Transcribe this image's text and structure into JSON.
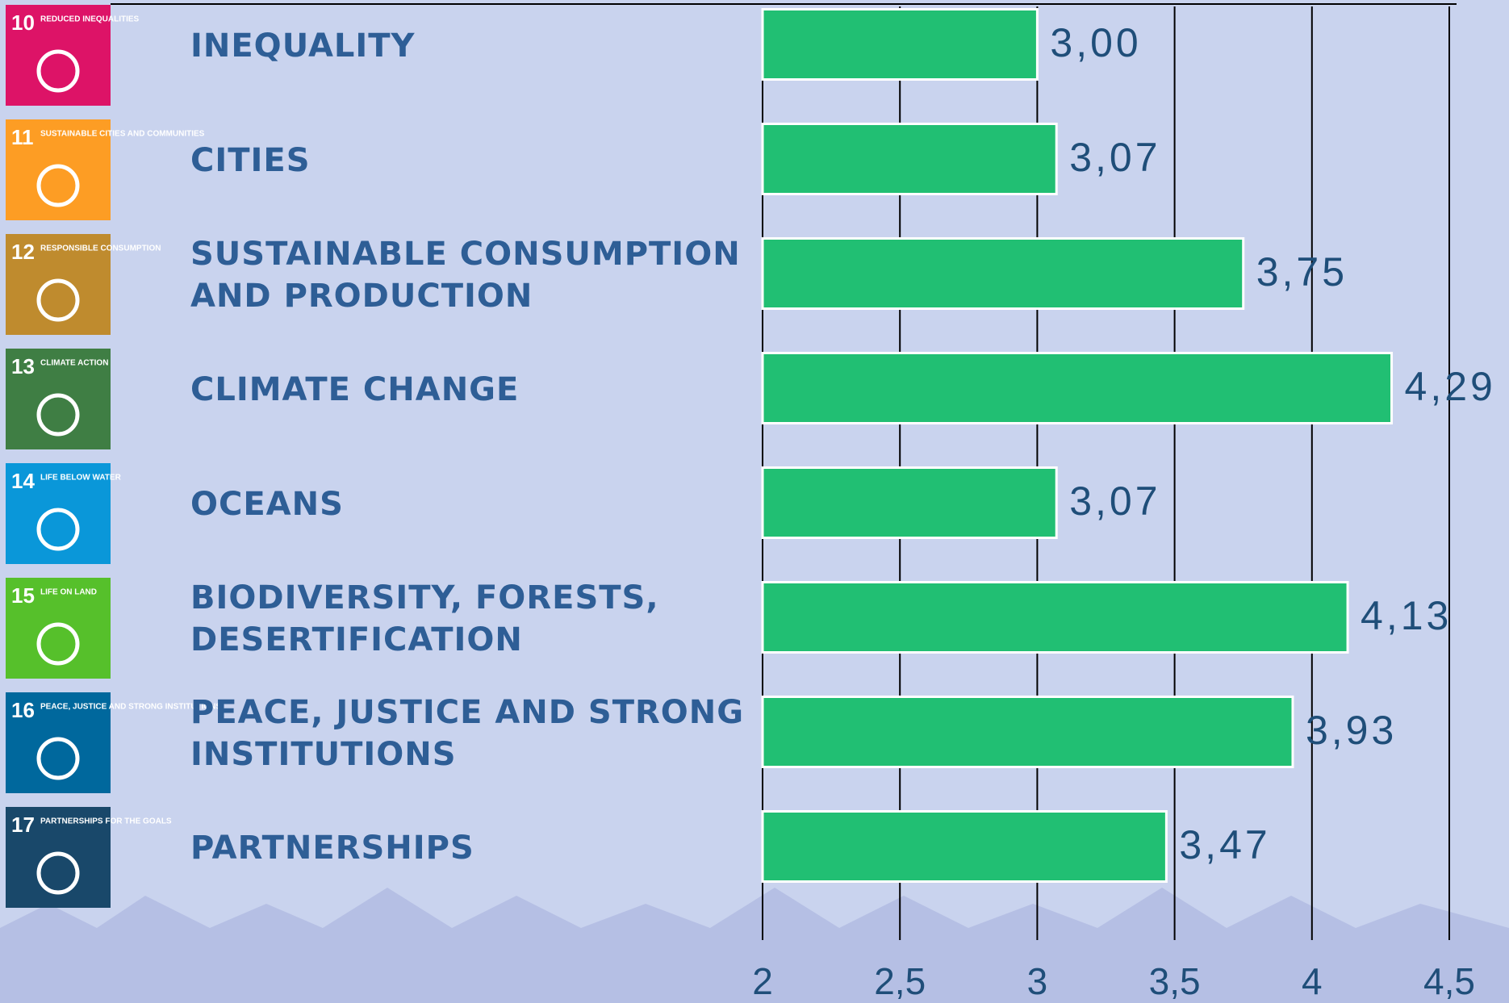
{
  "chart_data": {
    "type": "bar",
    "orientation": "horizontal",
    "categories": [
      [
        "INEQUALITY"
      ],
      [
        "CITIES"
      ],
      [
        "SUSTAINABLE CONSUMPTION",
        "AND PRODUCTION"
      ],
      [
        "CLIMATE CHANGE"
      ],
      [
        "OCEANS"
      ],
      [
        "BIODIVERSITY, FORESTS,",
        "DESERTIFICATION"
      ],
      [
        "PEACE, JUSTICE AND STRONG",
        "INSTITUTIONS"
      ],
      [
        "PARTNERSHIPS"
      ]
    ],
    "values": [
      3.0,
      3.07,
      3.75,
      4.29,
      3.07,
      4.13,
      3.93,
      3.47
    ],
    "value_labels": [
      "3,00",
      "3,07",
      "3,75",
      "4,29",
      "3,07",
      "4,13",
      "3,93",
      "3,47"
    ],
    "color": "#21bf73",
    "xlim": [
      2,
      4.5
    ],
    "xticks": [
      2,
      {
        "value": 2.5,
        "label": "2,5"
      },
      3,
      {
        "value": 3.5,
        "label": "3,5"
      },
      4,
      {
        "value": 4.5,
        "label": "4,5"
      }
    ],
    "grid": true,
    "icons": [
      {
        "number": "10",
        "label": "REDUCED INEQUALITIES",
        "color": "#dd1367"
      },
      {
        "number": "11",
        "label": "SUSTAINABLE CITIES AND COMMUNITIES",
        "color": "#fd9d24"
      },
      {
        "number": "12",
        "label": "RESPONSIBLE CONSUMPTION",
        "color": "#bf8b2e"
      },
      {
        "number": "13",
        "label": "CLIMATE ACTION",
        "color": "#3f7e44"
      },
      {
        "number": "14",
        "label": "LIFE BELOW WATER",
        "color": "#0a97d9"
      },
      {
        "number": "15",
        "label": "LIFE ON LAND",
        "color": "#56c02b"
      },
      {
        "number": "16",
        "label": "PEACE, JUSTICE AND STRONG INSTITUTIONS",
        "color": "#00689d"
      },
      {
        "number": "17",
        "label": "PARTNERSHIPS FOR THE GOALS",
        "color": "#19486a"
      }
    ]
  }
}
